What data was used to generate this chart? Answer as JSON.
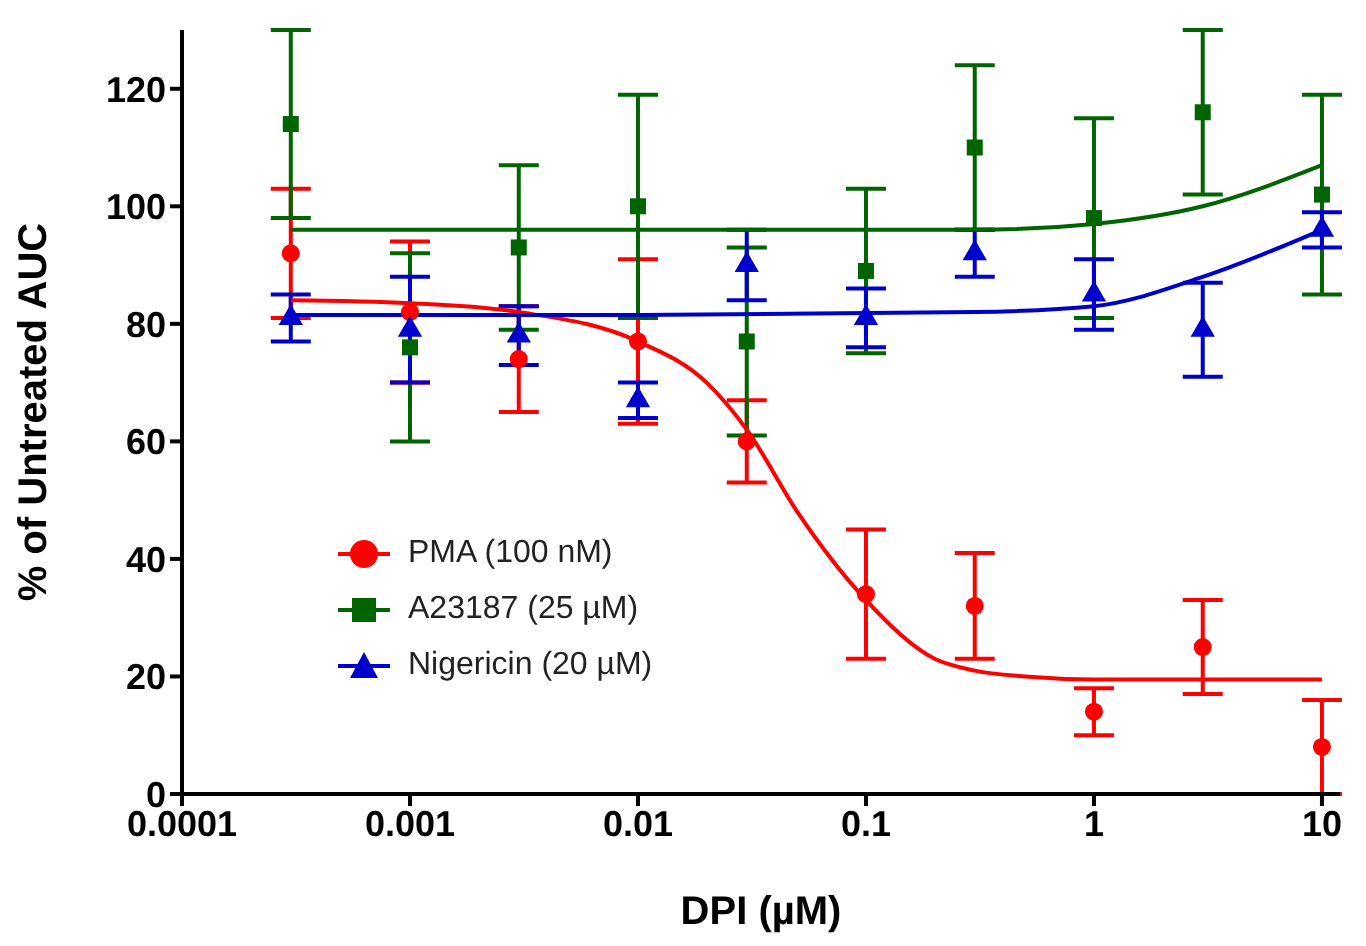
{
  "chart_data": {
    "type": "scatter",
    "xlabel": "DPI (µM)",
    "ylabel": "% of Untreated AUC",
    "log": "x",
    "xlim": [
      0.0001,
      12
    ],
    "xticks": [
      0.0001,
      0.001,
      0.01,
      0.1,
      1,
      10
    ],
    "ylim": [
      0,
      130
    ],
    "yticks": [
      0,
      20,
      40,
      60,
      80,
      100,
      120
    ],
    "grid": false,
    "legend": "bottom left",
    "series": [
      {
        "name": "PMA (100 nM)",
        "color": "#ff0000",
        "marker": "circle",
        "x": [
          0.0003,
          0.001,
          0.003,
          0.01,
          0.03,
          0.1,
          0.3,
          1,
          3,
          10
        ],
        "values": [
          92,
          82,
          74,
          77,
          60,
          34,
          32,
          14,
          25,
          8
        ],
        "errors": [
          11,
          12,
          9,
          14,
          7,
          11,
          9,
          4,
          8,
          8
        ]
      },
      {
        "name": "A23187 (25 µM)",
        "color": "#006400",
        "marker": "square",
        "x": [
          0.0003,
          0.001,
          0.003,
          0.01,
          0.03,
          0.1,
          0.3,
          1,
          3,
          10
        ],
        "values": [
          114,
          76,
          93,
          100,
          77,
          89,
          110,
          98,
          116,
          102
        ],
        "errors": [
          16,
          16,
          14,
          19,
          16,
          14,
          14,
          17,
          14,
          17
        ]
      },
      {
        "name": "Nigericin (20 µM)",
        "color": "#0000cc",
        "marker": "triangle",
        "x": [
          0.0003,
          0.001,
          0.003,
          0.01,
          0.03,
          0.1,
          0.3,
          1,
          3,
          10
        ],
        "values": [
          81,
          79,
          78,
          67,
          90,
          81,
          92,
          85,
          79,
          96
        ],
        "errors": [
          4,
          9,
          5,
          3,
          6,
          5,
          4,
          6,
          8,
          3
        ]
      },
      {
        "type": "line",
        "color": "#ff0000",
        "marker": "none",
        "x": [
          0.0003,
          0.001,
          0.003,
          0.01,
          0.02,
          0.03,
          0.05,
          0.1,
          0.2,
          0.3,
          0.5,
          1,
          10
        ],
        "values": [
          84,
          83.5,
          82,
          77,
          70,
          62,
          48,
          33,
          23,
          21,
          20,
          19.5,
          19.5
        ]
      },
      {
        "type": "line",
        "color": "#006400",
        "marker": "none",
        "x": [
          0.0003,
          0.01,
          0.3,
          1,
          3,
          10
        ],
        "values": [
          96,
          96,
          96,
          97,
          100,
          107
        ]
      },
      {
        "type": "line",
        "color": "#0000cc",
        "marker": "none",
        "x": [
          0.0003,
          0.01,
          0.3,
          1,
          3,
          10
        ],
        "values": [
          81.5,
          81.5,
          82,
          83,
          88,
          96
        ]
      }
    ]
  }
}
